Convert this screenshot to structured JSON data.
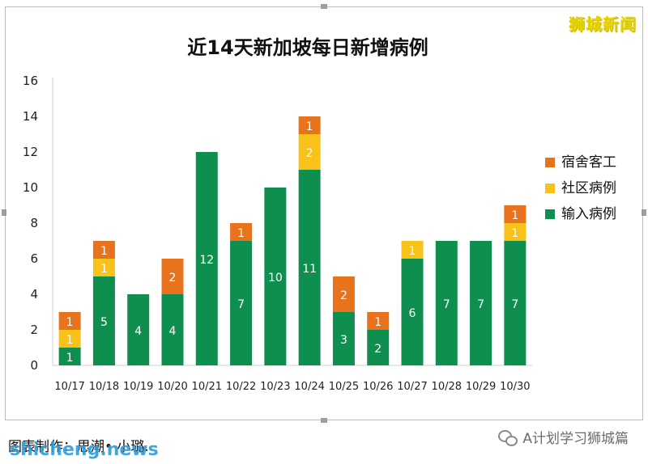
{
  "watermark": "狮城新闻",
  "caption": "图表制作：思潮• 小璐.",
  "site": "shicheng.news",
  "wechat_account": "A计划学习狮城篇",
  "icons": {
    "wechat": "wechat-icon"
  },
  "chart_data": {
    "type": "bar",
    "stacked": true,
    "title": "近14天新加坡每日新增病例",
    "categories": [
      "10/17",
      "10/18",
      "10/19",
      "10/20",
      "10/21",
      "10/22",
      "10/23",
      "10/24",
      "10/25",
      "10/26",
      "10/27",
      "10/28",
      "10/29",
      "10/30"
    ],
    "series": [
      {
        "name": "输入病例",
        "color": "#0e8f4f",
        "values": [
          1,
          5,
          4,
          4,
          12,
          7,
          10,
          11,
          3,
          2,
          6,
          7,
          7,
          7
        ]
      },
      {
        "name": "社区病例",
        "color": "#f8c21a",
        "values": [
          1,
          1,
          0,
          0,
          0,
          0,
          0,
          2,
          0,
          0,
          1,
          0,
          0,
          1
        ]
      },
      {
        "name": "宿舍客工",
        "color": "#e8731c",
        "values": [
          1,
          1,
          0,
          2,
          0,
          1,
          0,
          1,
          2,
          1,
          0,
          0,
          0,
          1
        ]
      }
    ],
    "legend_order": [
      "宿舍客工",
      "社区病例",
      "输入病例"
    ],
    "legend_position": "right",
    "ylim": [
      0,
      16
    ],
    "yticks": [
      0,
      2,
      4,
      6,
      8,
      10,
      12,
      14,
      16
    ],
    "grid": false,
    "data_labels": true,
    "xlabel": "",
    "ylabel": ""
  }
}
